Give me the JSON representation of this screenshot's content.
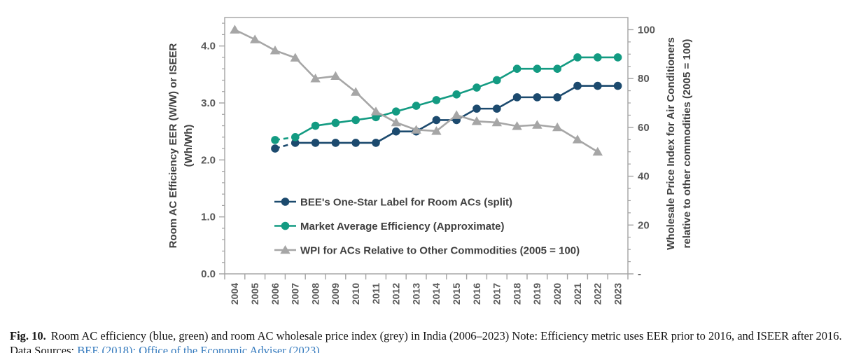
{
  "caption": {
    "label": "Fig. 10.",
    "text": "Room AC efficiency (blue, green) and room AC wholesale price index (grey) in India (2006–2023) Note: Efficiency metric uses EER prior to 2016, and ISEER after 2016. Data Sources: ",
    "sources_link": "BEE (2018); Office of the Economic Adviser (2023).",
    "link_color": "#3379bd",
    "text_color": "#151515"
  },
  "chart_data": {
    "type": "line",
    "x": [
      2004,
      2005,
      2006,
      2007,
      2008,
      2009,
      2010,
      2011,
      2012,
      2013,
      2014,
      2015,
      2016,
      2017,
      2018,
      2019,
      2020,
      2021,
      2022,
      2023
    ],
    "left_axis": {
      "label_line1": "Room AC Efficiency EER (W/W) or ISEER",
      "label_line2": "(Wh/Wh)",
      "range": [
        0,
        4.5
      ],
      "major_ticks": [
        0,
        1,
        2,
        3,
        4
      ],
      "tick_labels": [
        "0.0",
        "1.0",
        "2.0",
        "3.0",
        "4.0"
      ],
      "minor_step": 0.2
    },
    "right_axis": {
      "label_line1": "Wholesale Price Index for Air Conditioners",
      "label_line2": "relative to other commodities (2005 = 100)",
      "range": [
        0,
        105
      ],
      "major_ticks": [
        0,
        20,
        40,
        60,
        80,
        100
      ],
      "tick_labels": [
        "-",
        "20",
        "40",
        "60",
        "80",
        "100"
      ],
      "minor_step": 5
    },
    "grid": false,
    "legend_position": "inside-lower-left",
    "series": [
      {
        "name": "BEE's One-Star Label for Room ACs (split)",
        "axis": "left",
        "marker": "circle",
        "color": "#1c4a6e",
        "dash_first_segment": true,
        "values": [
          null,
          null,
          2.2,
          2.3,
          2.3,
          2.3,
          2.3,
          2.3,
          2.5,
          2.5,
          2.7,
          2.7,
          2.9,
          2.9,
          3.1,
          3.1,
          3.1,
          3.3,
          3.3,
          3.3
        ]
      },
      {
        "name": "Market Average Efficiency (Approximate)",
        "axis": "left",
        "marker": "circle",
        "color": "#139b82",
        "dash_first_segment": true,
        "values": [
          null,
          null,
          2.35,
          2.4,
          2.6,
          2.65,
          2.7,
          2.75,
          2.85,
          2.95,
          3.05,
          3.15,
          3.27,
          3.4,
          3.6,
          3.6,
          3.6,
          3.8,
          3.8,
          3.8
        ]
      },
      {
        "name": "WPI for ACs Relative to Other Commodities (2005 = 100)",
        "axis": "right",
        "marker": "triangle",
        "color": "#a6a6a6",
        "dash_first_segment": false,
        "values": [
          100,
          96,
          91.5,
          88.5,
          80,
          81,
          74.5,
          66.5,
          62,
          59,
          58.5,
          65,
          62.5,
          62,
          60.5,
          61,
          60,
          55,
          50,
          null
        ]
      }
    ]
  }
}
